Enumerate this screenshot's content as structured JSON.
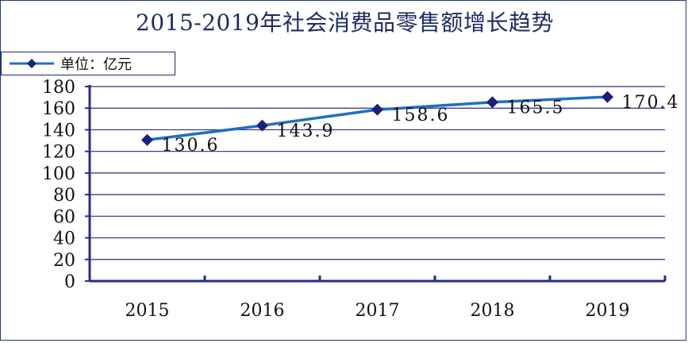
{
  "chart_data": {
    "type": "line",
    "title": "2015-2019年社会消费品零售额增长趋势",
    "categories": [
      "2015",
      "2016",
      "2017",
      "2018",
      "2019"
    ],
    "series": [
      {
        "name": "单位：亿元",
        "values": [
          130.6,
          143.9,
          158.6,
          165.5,
          170.4
        ],
        "color": "#1f6fc4",
        "marker_color": "#1a1f7a"
      }
    ],
    "data_labels": [
      "130.6",
      "143.9",
      "158.6",
      "165.5",
      "170.4"
    ],
    "yticks": [
      "0",
      "20",
      "40",
      "60",
      "80",
      "100",
      "120",
      "140",
      "160",
      "180"
    ],
    "ylim": [
      0,
      180
    ],
    "xlabel": "",
    "ylabel": "",
    "grid": true,
    "legend_position": "top-left",
    "axis_color": "#2a2a8a"
  }
}
